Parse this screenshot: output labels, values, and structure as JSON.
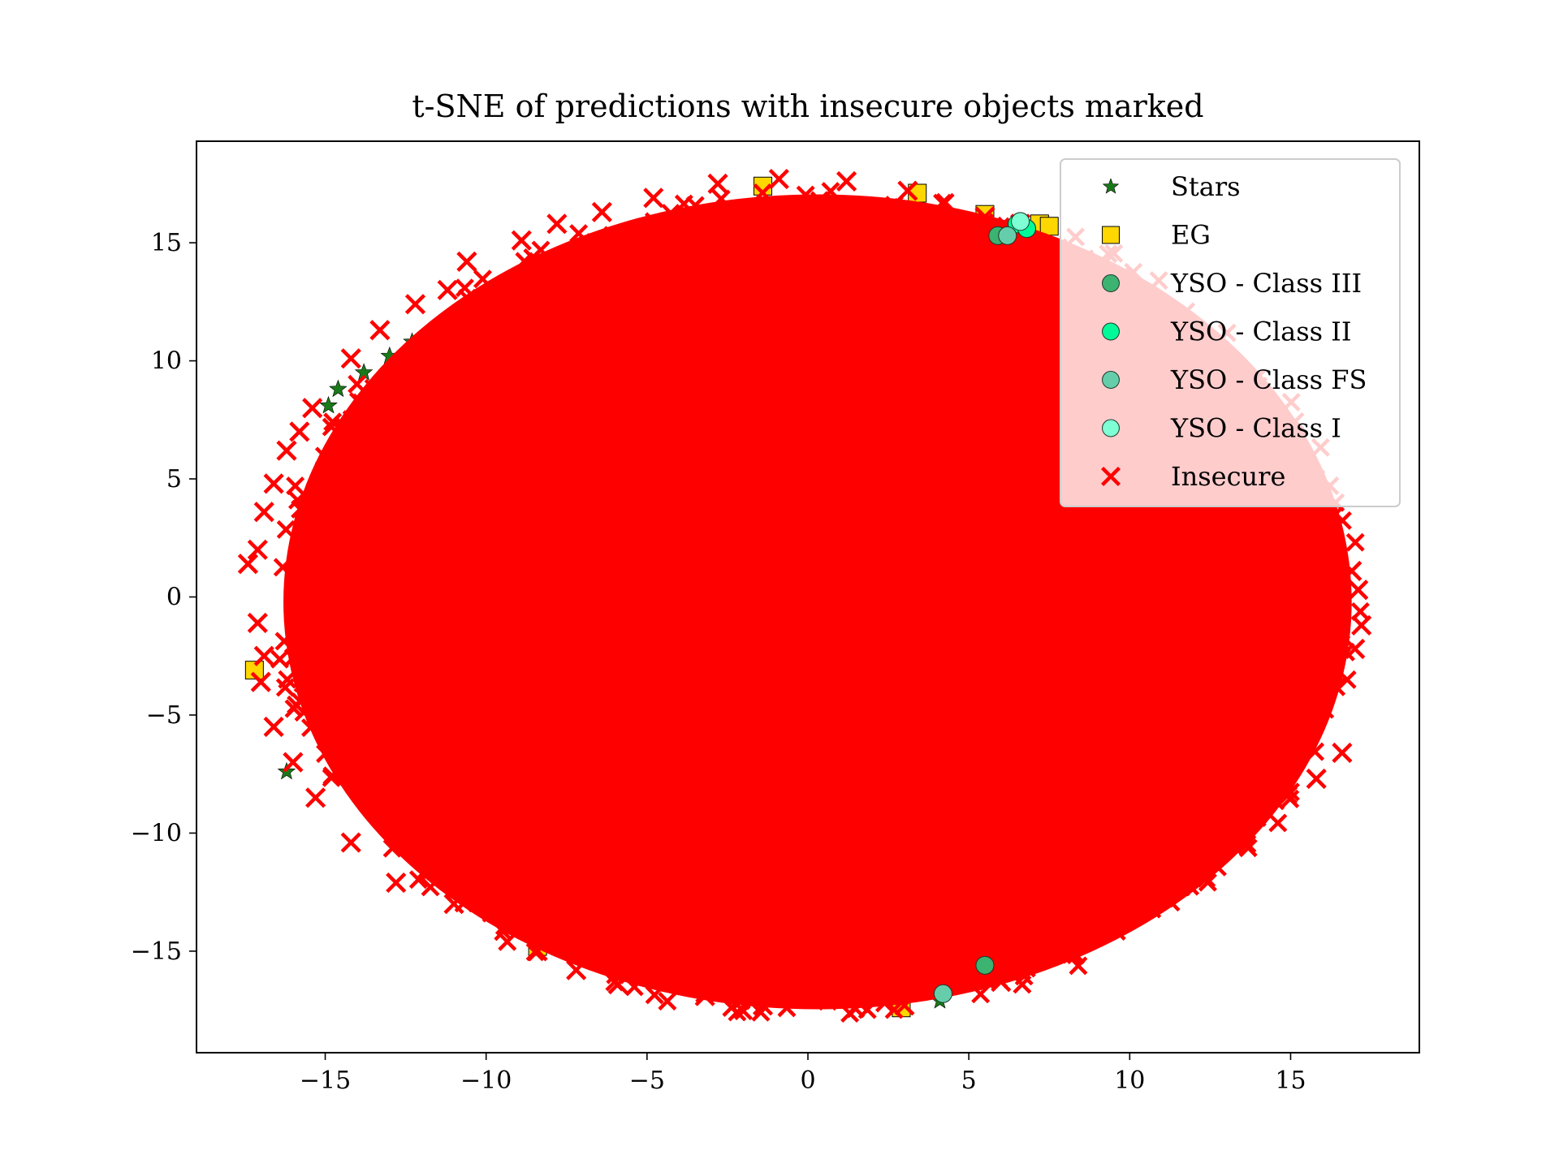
{
  "chart_data": {
    "type": "scatter",
    "title": "t-SNE of predictions with insecure objects marked",
    "xlabel": "",
    "ylabel": "",
    "xlim": [
      -19,
      19
    ],
    "ylim": [
      -19.3,
      19.3
    ],
    "xticks": [
      -15,
      -10,
      -5,
      0,
      5,
      10,
      15
    ],
    "yticks": [
      -15,
      -10,
      -5,
      0,
      5,
      10,
      15
    ],
    "grid": false,
    "legend_position": "top-right",
    "colors": {
      "Stars": "#1a7a1a",
      "EG": "#ffd700",
      "YSO - Class III": "#3cb371",
      "YSO - Class II": "#00fa9a",
      "YSO - Class FS": "#66cdaa",
      "YSO - Class I": "#7fffd4",
      "Insecure": "#ff0000"
    },
    "cloud": {
      "center": [
        0.4,
        0.0
      ],
      "radius_x": 16.8,
      "radius_y": 17.6,
      "density": "very high"
    },
    "series": [
      {
        "name": "Stars",
        "marker": "star",
        "points": [
          [
            -14.6,
            8.8
          ],
          [
            -13.8,
            9.5
          ],
          [
            -13,
            10.2
          ],
          [
            -12.3,
            10.8
          ],
          [
            -11.6,
            11.2
          ],
          [
            -14.9,
            8.1
          ],
          [
            -7.3,
            14.2
          ],
          [
            -6.8,
            14.7
          ],
          [
            -6.1,
            13.8
          ],
          [
            -5.6,
            12.3
          ],
          [
            -5.1,
            12.1
          ],
          [
            -2.8,
            15.6
          ],
          [
            -2.1,
            15.7
          ],
          [
            -1.4,
            15.6
          ],
          [
            -0.8,
            15.5
          ],
          [
            -0.2,
            15.4
          ],
          [
            0.4,
            15.3
          ],
          [
            7.4,
            14.9
          ],
          [
            8.2,
            13.9
          ],
          [
            10.9,
            11.4
          ],
          [
            11.5,
            10.8
          ],
          [
            12.2,
            9.9
          ],
          [
            9.1,
            -10.6
          ],
          [
            9.8,
            -10.2
          ],
          [
            10.4,
            -10.0
          ],
          [
            10.9,
            -9.7
          ],
          [
            11.4,
            -9.3
          ],
          [
            9.6,
            -11.3
          ],
          [
            10.2,
            -11.6
          ],
          [
            14.7,
            -7.6
          ],
          [
            15.4,
            -3.7
          ],
          [
            16.1,
            -2.5
          ],
          [
            -16.2,
            -7.4
          ],
          [
            -2.9,
            -12.6
          ],
          [
            -2.4,
            -12.2
          ],
          [
            4.1,
            -17.1
          ],
          [
            4.8,
            -16.3
          ]
        ]
      },
      {
        "name": "EG",
        "marker": "square",
        "points": [
          [
            -1.4,
            17.4
          ],
          [
            3.4,
            17.1
          ],
          [
            5.5,
            16.2
          ],
          [
            7.2,
            15.8
          ],
          [
            7.5,
            15.7
          ],
          [
            8.7,
            13.1
          ],
          [
            10.7,
            12.6
          ],
          [
            13,
            8.0
          ],
          [
            11.2,
            -9.4
          ],
          [
            11.6,
            -10.4
          ],
          [
            10.9,
            -10.4
          ],
          [
            -8.4,
            -14.8
          ],
          [
            -2.8,
            -12.6
          ],
          [
            2.9,
            -17.4
          ],
          [
            15.6,
            -2.9
          ],
          [
            -17.2,
            -3.1
          ],
          [
            -15.6,
            -3.5
          ]
        ]
      },
      {
        "name": "YSO - Class III",
        "marker": "circle",
        "points": [
          [
            5.9,
            15.3
          ],
          [
            5.5,
            -15.6
          ],
          [
            4.9,
            -15.6
          ],
          [
            5.6,
            -15.8
          ]
        ]
      },
      {
        "name": "YSO - Class II",
        "marker": "circle",
        "points": [
          [
            6.5,
            15.8
          ],
          [
            6.8,
            15.6
          ]
        ]
      },
      {
        "name": "YSO - Class FS",
        "marker": "circle",
        "points": [
          [
            6.2,
            15.3
          ],
          [
            4.2,
            -16.8
          ]
        ]
      },
      {
        "name": "YSO - Class I",
        "marker": "circle",
        "points": [
          [
            6.6,
            15.9
          ]
        ]
      },
      {
        "name": "Insecure",
        "marker": "x",
        "points": [
          [
            -17.4,
            1.4
          ],
          [
            -17.1,
            2.0
          ],
          [
            -16.9,
            3.6
          ],
          [
            -16.6,
            4.8
          ],
          [
            -16.2,
            6.2
          ],
          [
            -15.8,
            7.0
          ],
          [
            -15.4,
            8.0
          ],
          [
            -14.2,
            10.1
          ],
          [
            -13.3,
            11.3
          ],
          [
            -12.2,
            12.4
          ],
          [
            -11.2,
            13.0
          ],
          [
            -10.6,
            14.2
          ],
          [
            -8.9,
            15.1
          ],
          [
            -7.8,
            15.8
          ],
          [
            -6.4,
            16.3
          ],
          [
            -4.8,
            16.9
          ],
          [
            -2.8,
            17.5
          ],
          [
            -0.9,
            17.7
          ],
          [
            1.2,
            17.6
          ],
          [
            3.1,
            17.2
          ],
          [
            5.5,
            16.1
          ],
          [
            6.6,
            15.8
          ],
          [
            -17.1,
            -1.1
          ],
          [
            -16.9,
            -2.5
          ],
          [
            -17.0,
            -3.6
          ],
          [
            -16.6,
            -5.5
          ],
          [
            -16.0,
            -7.0
          ],
          [
            -15.3,
            -8.5
          ],
          [
            -14.2,
            -10.4
          ],
          [
            -12.8,
            -12.1
          ],
          [
            -11.0,
            -13.0
          ],
          [
            -9.4,
            -13.9
          ],
          [
            -8.4,
            -15.0
          ],
          [
            -7.2,
            -15.8
          ],
          [
            -5.9,
            -16.4
          ],
          [
            -3.2,
            -16.9
          ],
          [
            -1.4,
            -17.3
          ],
          [
            0.1,
            -16.9
          ],
          [
            1.6,
            -17.2
          ],
          [
            3.0,
            -17.3
          ],
          [
            4.1,
            -16.6
          ],
          [
            5.1,
            -16.0
          ],
          [
            6.0,
            -16.3
          ],
          [
            16.9,
            1.1
          ],
          [
            17.1,
            0.3
          ],
          [
            17.2,
            -1.2
          ],
          [
            17.0,
            -2.2
          ],
          [
            16.0,
            -3.0
          ],
          [
            15.2,
            -3.5
          ],
          [
            16.6,
            -6.6
          ],
          [
            15.8,
            -7.7
          ],
          [
            14.5,
            -8.6
          ],
          [
            13.2,
            -10.5
          ],
          [
            12.7,
            -11.4
          ],
          [
            11.7,
            -9.6
          ],
          [
            11.1,
            -10.4
          ],
          [
            10.0,
            -12.6
          ],
          [
            8.8,
            -13.6
          ]
        ]
      }
    ]
  }
}
